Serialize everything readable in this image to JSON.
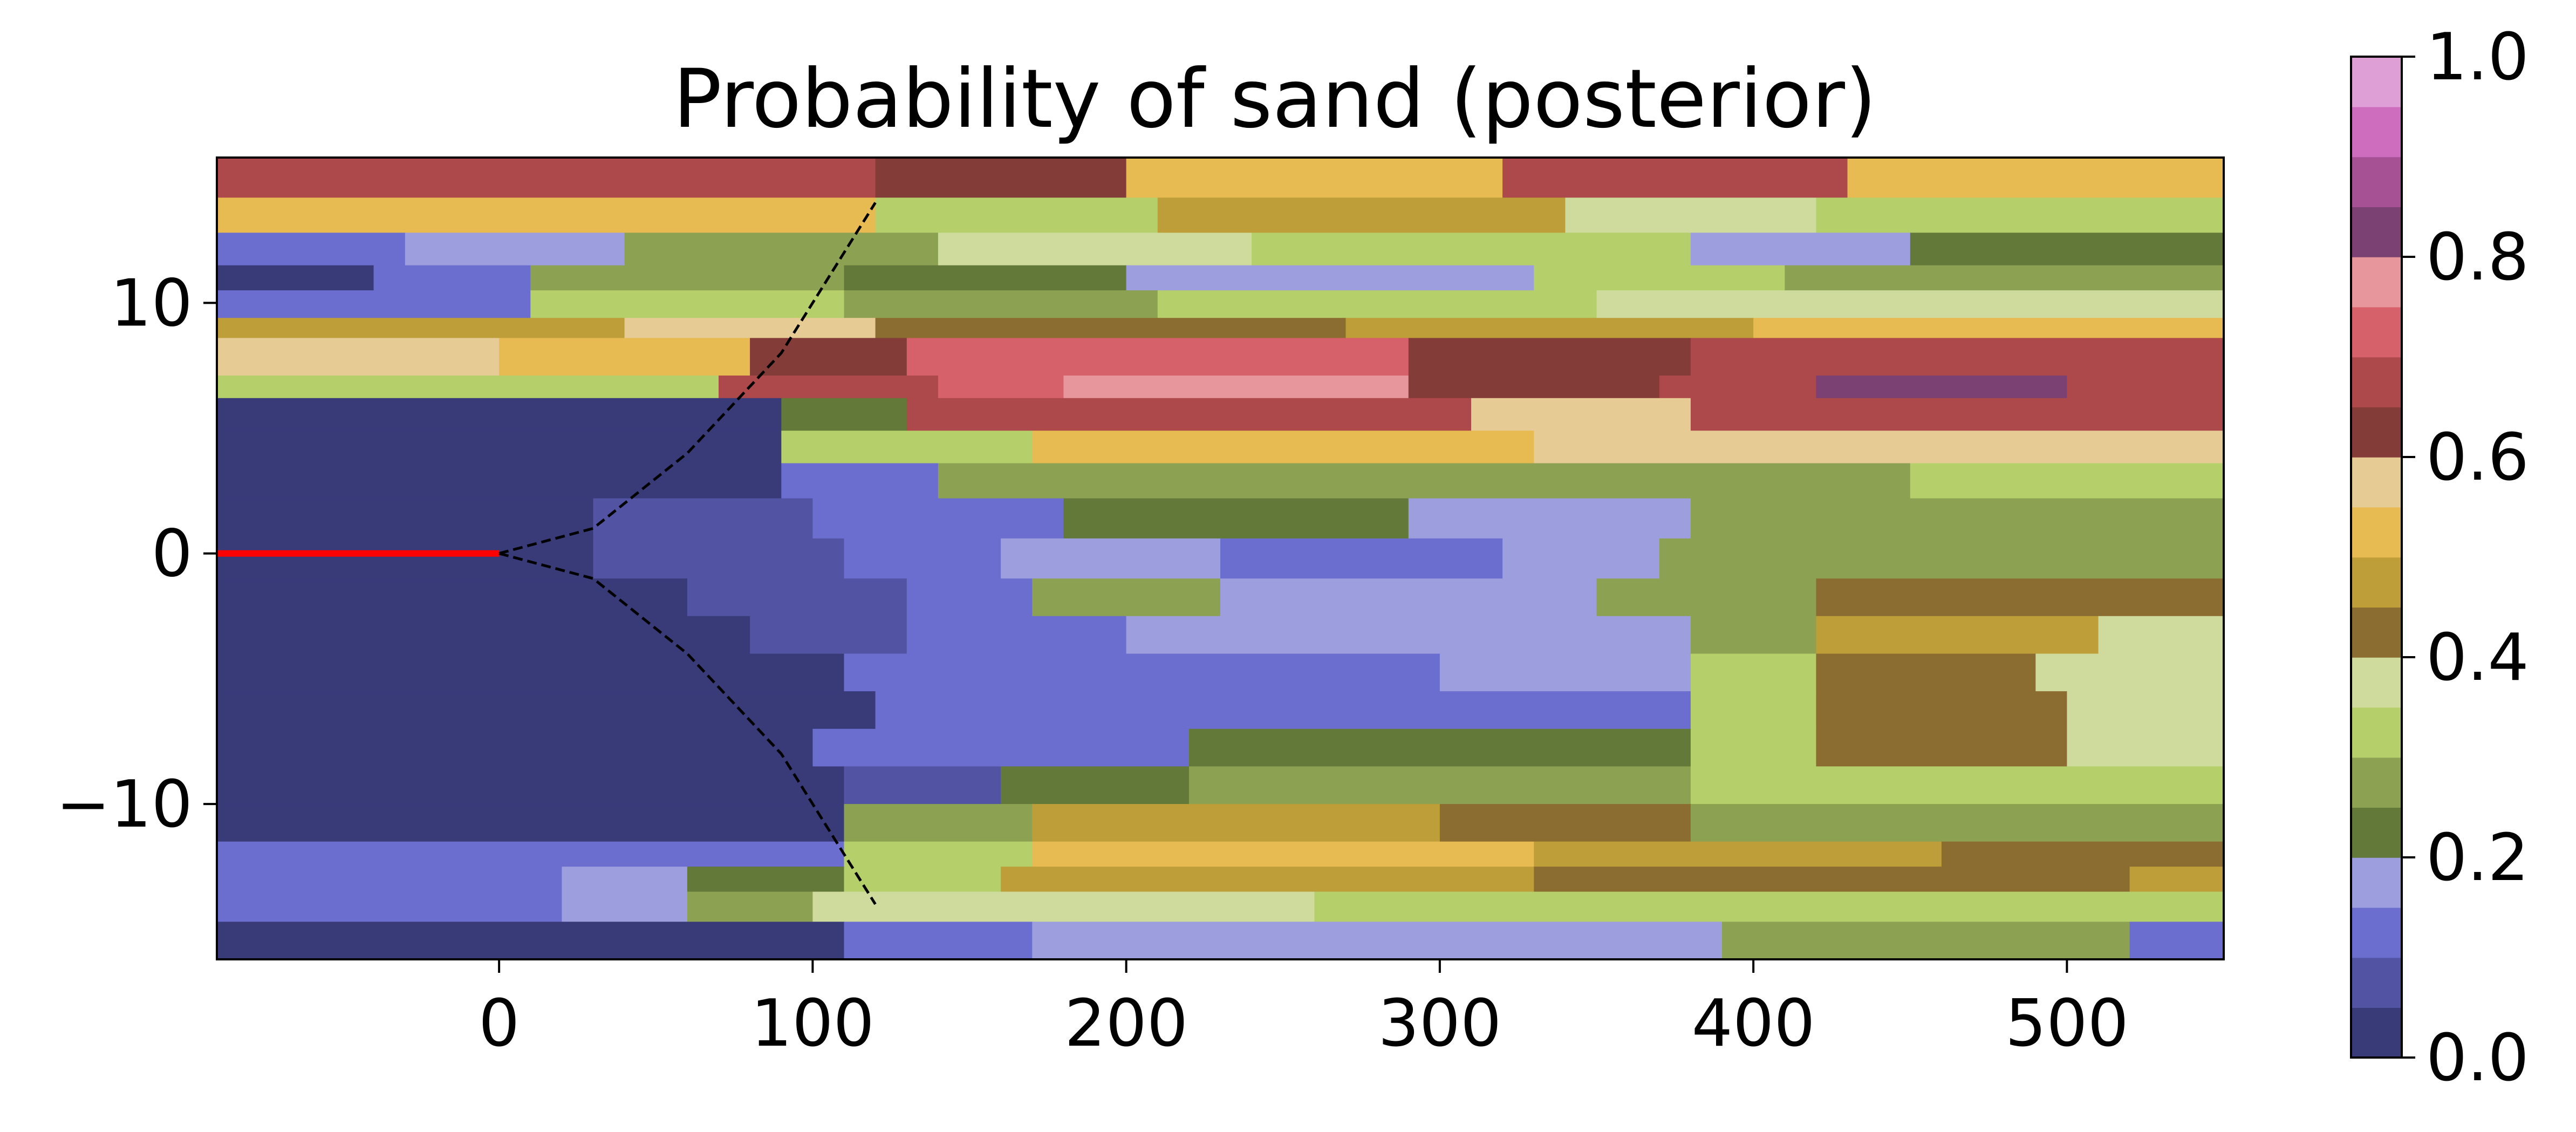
{
  "chart_data": {
    "type": "heatmap",
    "title": "Probability of sand (posterior)",
    "xlabel": "",
    "ylabel": "",
    "xlim": [
      -90,
      550
    ],
    "ylim": [
      -16.2,
      15.8
    ],
    "x_ticks": [
      {
        "value": 0,
        "label": "0"
      },
      {
        "value": 100,
        "label": "100"
      },
      {
        "value": 200,
        "label": "200"
      },
      {
        "value": 300,
        "label": "300"
      },
      {
        "value": 400,
        "label": "400"
      },
      {
        "value": 500,
        "label": "500"
      }
    ],
    "y_ticks": [
      {
        "value": 10,
        "label": "10"
      },
      {
        "value": 0,
        "label": "0"
      },
      {
        "value": -10,
        "label": "−10"
      }
    ],
    "colorbar": {
      "min": 0.0,
      "max": 1.0,
      "levels": 20,
      "ticks": [
        {
          "value": 0.0,
          "label": "0.0"
        },
        {
          "value": 0.2,
          "label": "0.2"
        },
        {
          "value": 0.4,
          "label": "0.4"
        },
        {
          "value": 0.6,
          "label": "0.6"
        },
        {
          "value": 0.8,
          "label": "0.8"
        },
        {
          "value": 1.0,
          "label": "1.0"
        }
      ],
      "colors": [
        "#393b79",
        "#5254a3",
        "#6b6ecf",
        "#9c9ede",
        "#637939",
        "#8ca252",
        "#b5cf6b",
        "#cedb9c",
        "#8c6d31",
        "#bd9e39",
        "#e7ba52",
        "#e7cb94",
        "#843c39",
        "#ad494a",
        "#d6616b",
        "#e7969c",
        "#7b4173",
        "#a55194",
        "#ce6dbd",
        "#de9ed6"
      ]
    },
    "bands": [
      {
        "y": [
          14.2,
          15.8
        ],
        "segments": [
          [
            -90,
            120,
            0.68
          ],
          [
            120,
            200,
            0.62
          ],
          [
            200,
            320,
            0.5
          ],
          [
            320,
            430,
            0.66
          ],
          [
            430,
            550,
            0.52
          ]
        ]
      },
      {
        "y": [
          12.8,
          14.2
        ],
        "segments": [
          [
            -90,
            120,
            0.52
          ],
          [
            120,
            210,
            0.3
          ],
          [
            210,
            340,
            0.48
          ],
          [
            340,
            420,
            0.36
          ],
          [
            420,
            550,
            0.3
          ]
        ]
      },
      {
        "y": [
          11.5,
          12.8
        ],
        "segments": [
          [
            -90,
            -30,
            0.1
          ],
          [
            -30,
            40,
            0.16
          ],
          [
            40,
            140,
            0.28
          ],
          [
            140,
            240,
            0.36
          ],
          [
            240,
            380,
            0.33
          ],
          [
            380,
            450,
            0.18
          ],
          [
            450,
            550,
            0.23
          ]
        ]
      },
      {
        "y": [
          10.5,
          11.5
        ],
        "segments": [
          [
            -90,
            -40,
            0.02
          ],
          [
            -40,
            10,
            0.1
          ],
          [
            10,
            110,
            0.27
          ],
          [
            110,
            200,
            0.23
          ],
          [
            200,
            330,
            0.18
          ],
          [
            330,
            410,
            0.33
          ],
          [
            410,
            550,
            0.28
          ]
        ]
      },
      {
        "y": [
          9.4,
          10.5
        ],
        "segments": [
          [
            -90,
            10,
            0.13
          ],
          [
            10,
            110,
            0.32
          ],
          [
            110,
            210,
            0.27
          ],
          [
            210,
            350,
            0.32
          ],
          [
            350,
            550,
            0.36
          ]
        ]
      },
      {
        "y": [
          8.6,
          9.4
        ],
        "segments": [
          [
            -90,
            40,
            0.45
          ],
          [
            40,
            120,
            0.55
          ],
          [
            120,
            270,
            0.4
          ],
          [
            270,
            400,
            0.47
          ],
          [
            400,
            550,
            0.52
          ]
        ]
      },
      {
        "y": [
          7.1,
          8.6
        ],
        "segments": [
          [
            -90,
            0,
            0.57
          ],
          [
            0,
            80,
            0.52
          ],
          [
            80,
            130,
            0.62
          ],
          [
            130,
            290,
            0.71
          ],
          [
            290,
            380,
            0.62
          ],
          [
            380,
            550,
            0.68
          ]
        ]
      },
      {
        "y": [
          6.2,
          7.1
        ],
        "segments": [
          [
            -90,
            70,
            0.32
          ],
          [
            70,
            140,
            0.66
          ],
          [
            140,
            180,
            0.72
          ],
          [
            180,
            290,
            0.76
          ],
          [
            290,
            370,
            0.64
          ],
          [
            370,
            420,
            0.66
          ],
          [
            420,
            500,
            0.82
          ],
          [
            500,
            550,
            0.68
          ]
        ]
      },
      {
        "y": [
          4.9,
          6.2
        ],
        "segments": [
          [
            -90,
            90,
            0.02
          ],
          [
            90,
            130,
            0.22
          ],
          [
            130,
            310,
            0.68
          ],
          [
            310,
            380,
            0.56
          ],
          [
            380,
            550,
            0.68
          ]
        ]
      },
      {
        "y": [
          3.6,
          4.9
        ],
        "segments": [
          [
            -90,
            90,
            0.02
          ],
          [
            90,
            170,
            0.3
          ],
          [
            170,
            330,
            0.52
          ],
          [
            330,
            550,
            0.56
          ]
        ]
      },
      {
        "y": [
          2.2,
          3.6
        ],
        "segments": [
          [
            -90,
            90,
            0.02
          ],
          [
            90,
            140,
            0.1
          ],
          [
            140,
            280,
            0.26
          ],
          [
            280,
            450,
            0.28
          ],
          [
            450,
            550,
            0.3
          ]
        ]
      },
      {
        "y": [
          0.6,
          2.2
        ],
        "segments": [
          [
            -90,
            30,
            0.02
          ],
          [
            30,
            100,
            0.06
          ],
          [
            100,
            180,
            0.14
          ],
          [
            180,
            290,
            0.24
          ],
          [
            290,
            380,
            0.17
          ],
          [
            380,
            550,
            0.26
          ]
        ]
      },
      {
        "y": [
          -1.0,
          0.6
        ],
        "segments": [
          [
            -90,
            30,
            0.02
          ],
          [
            30,
            110,
            0.06
          ],
          [
            110,
            160,
            0.12
          ],
          [
            160,
            230,
            0.17
          ],
          [
            230,
            320,
            0.12
          ],
          [
            320,
            370,
            0.17
          ],
          [
            370,
            550,
            0.26
          ]
        ]
      },
      {
        "y": [
          -2.5,
          -1.0
        ],
        "segments": [
          [
            -90,
            60,
            0.02
          ],
          [
            60,
            130,
            0.08
          ],
          [
            130,
            170,
            0.14
          ],
          [
            170,
            230,
            0.26
          ],
          [
            230,
            350,
            0.17
          ],
          [
            350,
            420,
            0.26
          ],
          [
            420,
            550,
            0.44
          ]
        ]
      },
      {
        "y": [
          -4.0,
          -2.5
        ],
        "segments": [
          [
            -90,
            80,
            0.02
          ],
          [
            80,
            130,
            0.08
          ],
          [
            130,
            200,
            0.12
          ],
          [
            200,
            380,
            0.16
          ],
          [
            380,
            420,
            0.26
          ],
          [
            420,
            510,
            0.47
          ],
          [
            510,
            550,
            0.36
          ]
        ]
      },
      {
        "y": [
          -5.5,
          -4.0
        ],
        "segments": [
          [
            -90,
            110,
            0.02
          ],
          [
            110,
            180,
            0.1
          ],
          [
            180,
            300,
            0.14
          ],
          [
            300,
            380,
            0.18
          ],
          [
            380,
            420,
            0.3
          ],
          [
            420,
            490,
            0.42
          ],
          [
            490,
            550,
            0.36
          ]
        ]
      },
      {
        "y": [
          -7.0,
          -5.5
        ],
        "segments": [
          [
            -90,
            120,
            0.02
          ],
          [
            120,
            180,
            0.1
          ],
          [
            180,
            290,
            0.14
          ],
          [
            290,
            380,
            0.12
          ],
          [
            380,
            420,
            0.3
          ],
          [
            420,
            500,
            0.42
          ],
          [
            500,
            550,
            0.36
          ]
        ]
      },
      {
        "y": [
          -8.5,
          -7.0
        ],
        "segments": [
          [
            -90,
            100,
            0.02
          ],
          [
            100,
            150,
            0.1
          ],
          [
            150,
            220,
            0.14
          ],
          [
            220,
            380,
            0.24
          ],
          [
            380,
            420,
            0.3
          ],
          [
            420,
            500,
            0.42
          ],
          [
            500,
            550,
            0.36
          ]
        ]
      },
      {
        "y": [
          -10.0,
          -8.5
        ],
        "segments": [
          [
            -90,
            110,
            0.02
          ],
          [
            110,
            160,
            0.08
          ],
          [
            160,
            220,
            0.24
          ],
          [
            220,
            380,
            0.26
          ],
          [
            380,
            550,
            0.32
          ]
        ]
      },
      {
        "y": [
          -11.5,
          -10.0
        ],
        "segments": [
          [
            -90,
            110,
            0.02
          ],
          [
            110,
            170,
            0.28
          ],
          [
            170,
            300,
            0.46
          ],
          [
            300,
            380,
            0.44
          ],
          [
            380,
            550,
            0.28
          ]
        ]
      },
      {
        "y": [
          -12.5,
          -11.5
        ],
        "segments": [
          [
            -90,
            110,
            0.12
          ],
          [
            110,
            170,
            0.3
          ],
          [
            170,
            330,
            0.52
          ],
          [
            330,
            460,
            0.47
          ],
          [
            460,
            550,
            0.44
          ]
        ]
      },
      {
        "y": [
          -13.5,
          -12.5
        ],
        "segments": [
          [
            -90,
            20,
            0.1
          ],
          [
            20,
            60,
            0.18
          ],
          [
            60,
            110,
            0.22
          ],
          [
            110,
            160,
            0.3
          ],
          [
            160,
            330,
            0.47
          ],
          [
            330,
            520,
            0.44
          ],
          [
            520,
            550,
            0.47
          ]
        ]
      },
      {
        "y": [
          -14.7,
          -13.5
        ],
        "segments": [
          [
            -90,
            20,
            0.12
          ],
          [
            20,
            60,
            0.18
          ],
          [
            60,
            100,
            0.26
          ],
          [
            100,
            260,
            0.36
          ],
          [
            260,
            550,
            0.34
          ]
        ]
      },
      {
        "y": [
          -16.2,
          -14.7
        ],
        "segments": [
          [
            -90,
            110,
            0.02
          ],
          [
            110,
            170,
            0.1
          ],
          [
            170,
            390,
            0.16
          ],
          [
            390,
            460,
            0.26
          ],
          [
            460,
            520,
            0.26
          ],
          [
            520,
            550,
            0.1
          ]
        ]
      }
    ],
    "source_line": {
      "color": "#ff0000",
      "points": [
        [
          -90,
          0
        ],
        [
          0,
          0
        ]
      ]
    },
    "envelope_lines": [
      {
        "color": "#000000",
        "style": "dashed",
        "points": [
          [
            0,
            0
          ],
          [
            30,
            1
          ],
          [
            60,
            4
          ],
          [
            90,
            8
          ],
          [
            120,
            14
          ]
        ]
      },
      {
        "color": "#000000",
        "style": "dashed",
        "points": [
          [
            0,
            0
          ],
          [
            30,
            -1
          ],
          [
            60,
            -4
          ],
          [
            90,
            -8
          ],
          [
            120,
            -14
          ]
        ]
      }
    ]
  }
}
